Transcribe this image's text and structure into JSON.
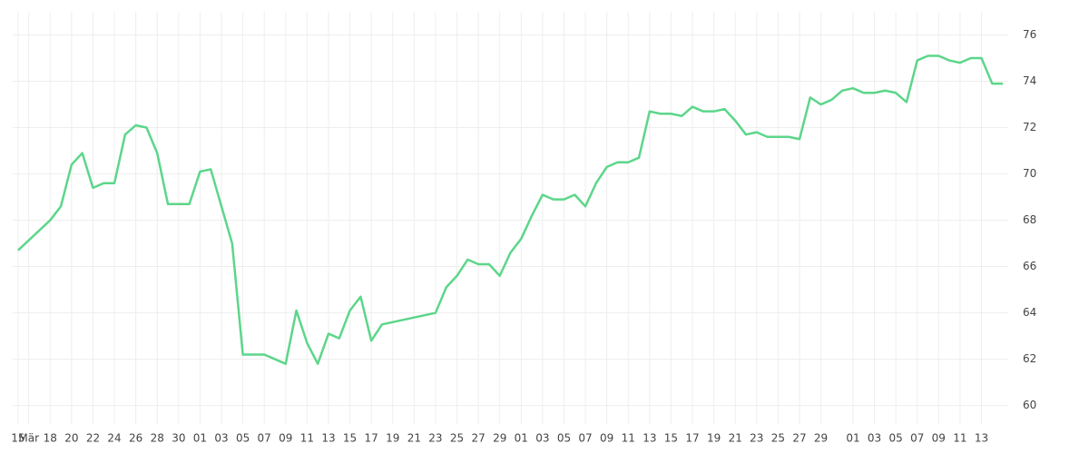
{
  "chart_data": {
    "type": "line",
    "x": [
      0,
      3,
      4,
      5,
      6,
      7,
      8,
      9,
      10,
      11,
      12,
      13,
      14,
      15,
      16,
      17,
      18,
      19,
      20,
      21,
      22,
      23,
      24,
      25,
      26,
      27,
      28,
      29,
      30,
      31,
      32,
      33,
      34,
      39,
      40,
      41,
      42,
      43,
      44,
      45,
      46,
      47,
      48,
      49,
      50,
      51,
      52,
      53,
      54,
      55,
      56,
      57,
      58,
      59,
      60,
      61,
      62,
      63,
      64,
      65,
      66,
      67,
      68,
      69,
      70,
      71,
      72,
      73,
      74,
      75,
      76,
      77,
      78,
      79,
      80,
      81,
      82,
      83,
      84,
      85,
      86,
      87,
      88,
      89,
      90,
      91,
      92
    ],
    "series": [
      {
        "color": "#5cd68a",
        "values": [
          66.7,
          68.0,
          68.6,
          70.4,
          70.9,
          69.4,
          69.6,
          69.6,
          71.7,
          72.1,
          72.0,
          70.9,
          68.7,
          68.7,
          68.7,
          70.1,
          70.2,
          68.6,
          67.0,
          62.2,
          62.2,
          62.2,
          62.0,
          61.8,
          64.1,
          62.7,
          61.8,
          63.1,
          62.9,
          64.1,
          64.7,
          62.8,
          63.5,
          64.0,
          65.1,
          65.6,
          66.3,
          66.1,
          66.1,
          65.6,
          66.6,
          67.2,
          68.2,
          69.1,
          68.9,
          68.9,
          69.1,
          68.6,
          69.6,
          70.3,
          70.5,
          70.5,
          70.7,
          72.7,
          72.6,
          72.6,
          72.5,
          72.9,
          72.7,
          72.7,
          72.8,
          72.3,
          71.7,
          71.8,
          71.6,
          71.6,
          71.6,
          71.5,
          73.3,
          73.0,
          73.2,
          73.6,
          73.7,
          73.5,
          73.5,
          73.6,
          73.5,
          73.1,
          74.9,
          75.1,
          75.1,
          74.9,
          74.8,
          75.0,
          75.0,
          73.9,
          73.9
        ]
      }
    ],
    "xlim": [
      -0.5,
      92.5
    ],
    "xticks": [
      {
        "value": 0,
        "label": "15"
      },
      {
        "value": 1,
        "label": "Mär"
      },
      {
        "value": 3,
        "label": "18"
      },
      {
        "value": 5,
        "label": "20"
      },
      {
        "value": 7,
        "label": "22"
      },
      {
        "value": 9,
        "label": "24"
      },
      {
        "value": 11,
        "label": "26"
      },
      {
        "value": 13,
        "label": "28"
      },
      {
        "value": 15,
        "label": "30"
      },
      {
        "value": 17,
        "label": "01"
      },
      {
        "value": 19,
        "label": "03"
      },
      {
        "value": 21,
        "label": "05"
      },
      {
        "value": 23,
        "label": "07"
      },
      {
        "value": 25,
        "label": "09"
      },
      {
        "value": 27,
        "label": "11"
      },
      {
        "value": 29,
        "label": "13"
      },
      {
        "value": 31,
        "label": "15"
      },
      {
        "value": 33,
        "label": "17"
      },
      {
        "value": 35,
        "label": "19"
      },
      {
        "value": 37,
        "label": "21"
      },
      {
        "value": 39,
        "label": "23"
      },
      {
        "value": 41,
        "label": "25"
      },
      {
        "value": 43,
        "label": "27"
      },
      {
        "value": 45,
        "label": "29"
      },
      {
        "value": 47,
        "label": "01"
      },
      {
        "value": 49,
        "label": "03"
      },
      {
        "value": 51,
        "label": "05"
      },
      {
        "value": 53,
        "label": "07"
      },
      {
        "value": 55,
        "label": "09"
      },
      {
        "value": 57,
        "label": "11"
      },
      {
        "value": 59,
        "label": "13"
      },
      {
        "value": 61,
        "label": "15"
      },
      {
        "value": 63,
        "label": "17"
      },
      {
        "value": 65,
        "label": "19"
      },
      {
        "value": 67,
        "label": "21"
      },
      {
        "value": 69,
        "label": "23"
      },
      {
        "value": 71,
        "label": "25"
      },
      {
        "value": 73,
        "label": "27"
      },
      {
        "value": 75,
        "label": "29"
      },
      {
        "value": 78,
        "label": "01"
      },
      {
        "value": 80,
        "label": "03"
      },
      {
        "value": 82,
        "label": "05"
      },
      {
        "value": 84,
        "label": "07"
      },
      {
        "value": 86,
        "label": "09"
      },
      {
        "value": 88,
        "label": "11"
      },
      {
        "value": 90,
        "label": "13"
      }
    ],
    "ylim": [
      59.2,
      77
    ],
    "yticks": [
      60,
      62,
      64,
      66,
      68,
      70,
      72,
      74,
      76
    ],
    "grid": true
  }
}
